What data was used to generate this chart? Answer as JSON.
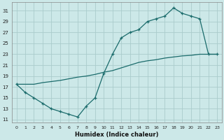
{
  "xlabel": "Humidex (Indice chaleur)",
  "bg_color": "#cce8e8",
  "grid_color": "#aacccc",
  "line_color": "#1a6b6b",
  "xlim": [
    -0.5,
    23.5
  ],
  "ylim": [
    10.5,
    32.5
  ],
  "yticks": [
    11,
    13,
    15,
    17,
    19,
    21,
    23,
    25,
    27,
    29,
    31
  ],
  "xticks": [
    0,
    1,
    2,
    3,
    4,
    5,
    6,
    7,
    8,
    9,
    10,
    11,
    12,
    13,
    14,
    15,
    16,
    17,
    18,
    19,
    20,
    21,
    22,
    23
  ],
  "curve1_x": [
    0,
    1,
    2,
    3,
    4,
    5,
    6,
    7,
    8,
    9,
    10,
    11,
    12,
    13,
    14,
    15,
    16,
    17,
    18,
    19,
    20,
    21,
    22,
    23
  ],
  "curve1_y": [
    17.5,
    16,
    15,
    14,
    13,
    12.5,
    12,
    11.5,
    13.5,
    15,
    19.5,
    23,
    26,
    27,
    27.5,
    29,
    29.5,
    30,
    31.5,
    30.5,
    30,
    29.5,
    23,
    23
  ],
  "curve2_x": [
    0,
    1,
    2,
    3,
    4,
    5,
    6,
    7,
    8,
    9,
    10,
    11,
    12,
    13,
    14,
    15,
    16,
    17,
    18,
    19,
    20,
    21,
    22,
    23
  ],
  "curve2_y": [
    17.5,
    17.5,
    17.5,
    17.8,
    18,
    18.2,
    18.5,
    18.8,
    19,
    19.3,
    19.7,
    20,
    20.5,
    21,
    21.5,
    21.8,
    22,
    22.3,
    22.5,
    22.7,
    22.8,
    23,
    23,
    23
  ]
}
